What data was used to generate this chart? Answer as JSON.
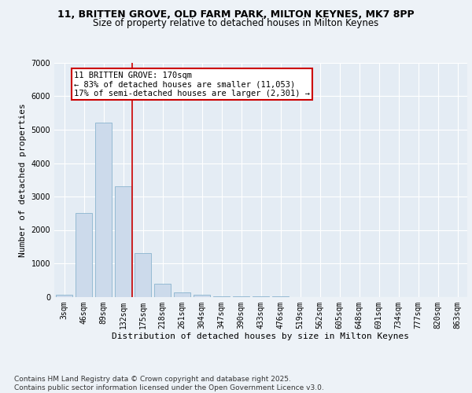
{
  "title1": "11, BRITTEN GROVE, OLD FARM PARK, MILTON KEYNES, MK7 8PP",
  "title2": "Size of property relative to detached houses in Milton Keynes",
  "xlabel": "Distribution of detached houses by size in Milton Keynes",
  "ylabel": "Number of detached properties",
  "categories": [
    "3sqm",
    "46sqm",
    "89sqm",
    "132sqm",
    "175sqm",
    "218sqm",
    "261sqm",
    "304sqm",
    "347sqm",
    "390sqm",
    "433sqm",
    "476sqm",
    "519sqm",
    "562sqm",
    "605sqm",
    "648sqm",
    "691sqm",
    "734sqm",
    "777sqm",
    "820sqm",
    "863sqm"
  ],
  "bar_values": [
    50,
    2500,
    5200,
    3300,
    1300,
    400,
    130,
    50,
    10,
    5,
    2,
    1,
    0,
    0,
    0,
    0,
    0,
    0,
    0,
    0,
    0
  ],
  "bar_color": "#ccdaeb",
  "bar_edge_color": "#7aaac8",
  "vline_color": "#cc0000",
  "annotation_text": "11 BRITTEN GROVE: 170sqm\n← 83% of detached houses are smaller (11,053)\n17% of semi-detached houses are larger (2,301) →",
  "annotation_box_color": "#cc0000",
  "ylim": [
    0,
    7000
  ],
  "yticks": [
    0,
    1000,
    2000,
    3000,
    4000,
    5000,
    6000,
    7000
  ],
  "footer": "Contains HM Land Registry data © Crown copyright and database right 2025.\nContains public sector information licensed under the Open Government Licence v3.0.",
  "bg_color": "#edf2f7",
  "plot_bg_color": "#e4ecf4",
  "grid_color": "#ffffff",
  "title1_fontsize": 9,
  "title2_fontsize": 8.5,
  "axis_label_fontsize": 8,
  "tick_fontsize": 7,
  "footer_fontsize": 6.5,
  "annotation_fontsize": 7.5
}
